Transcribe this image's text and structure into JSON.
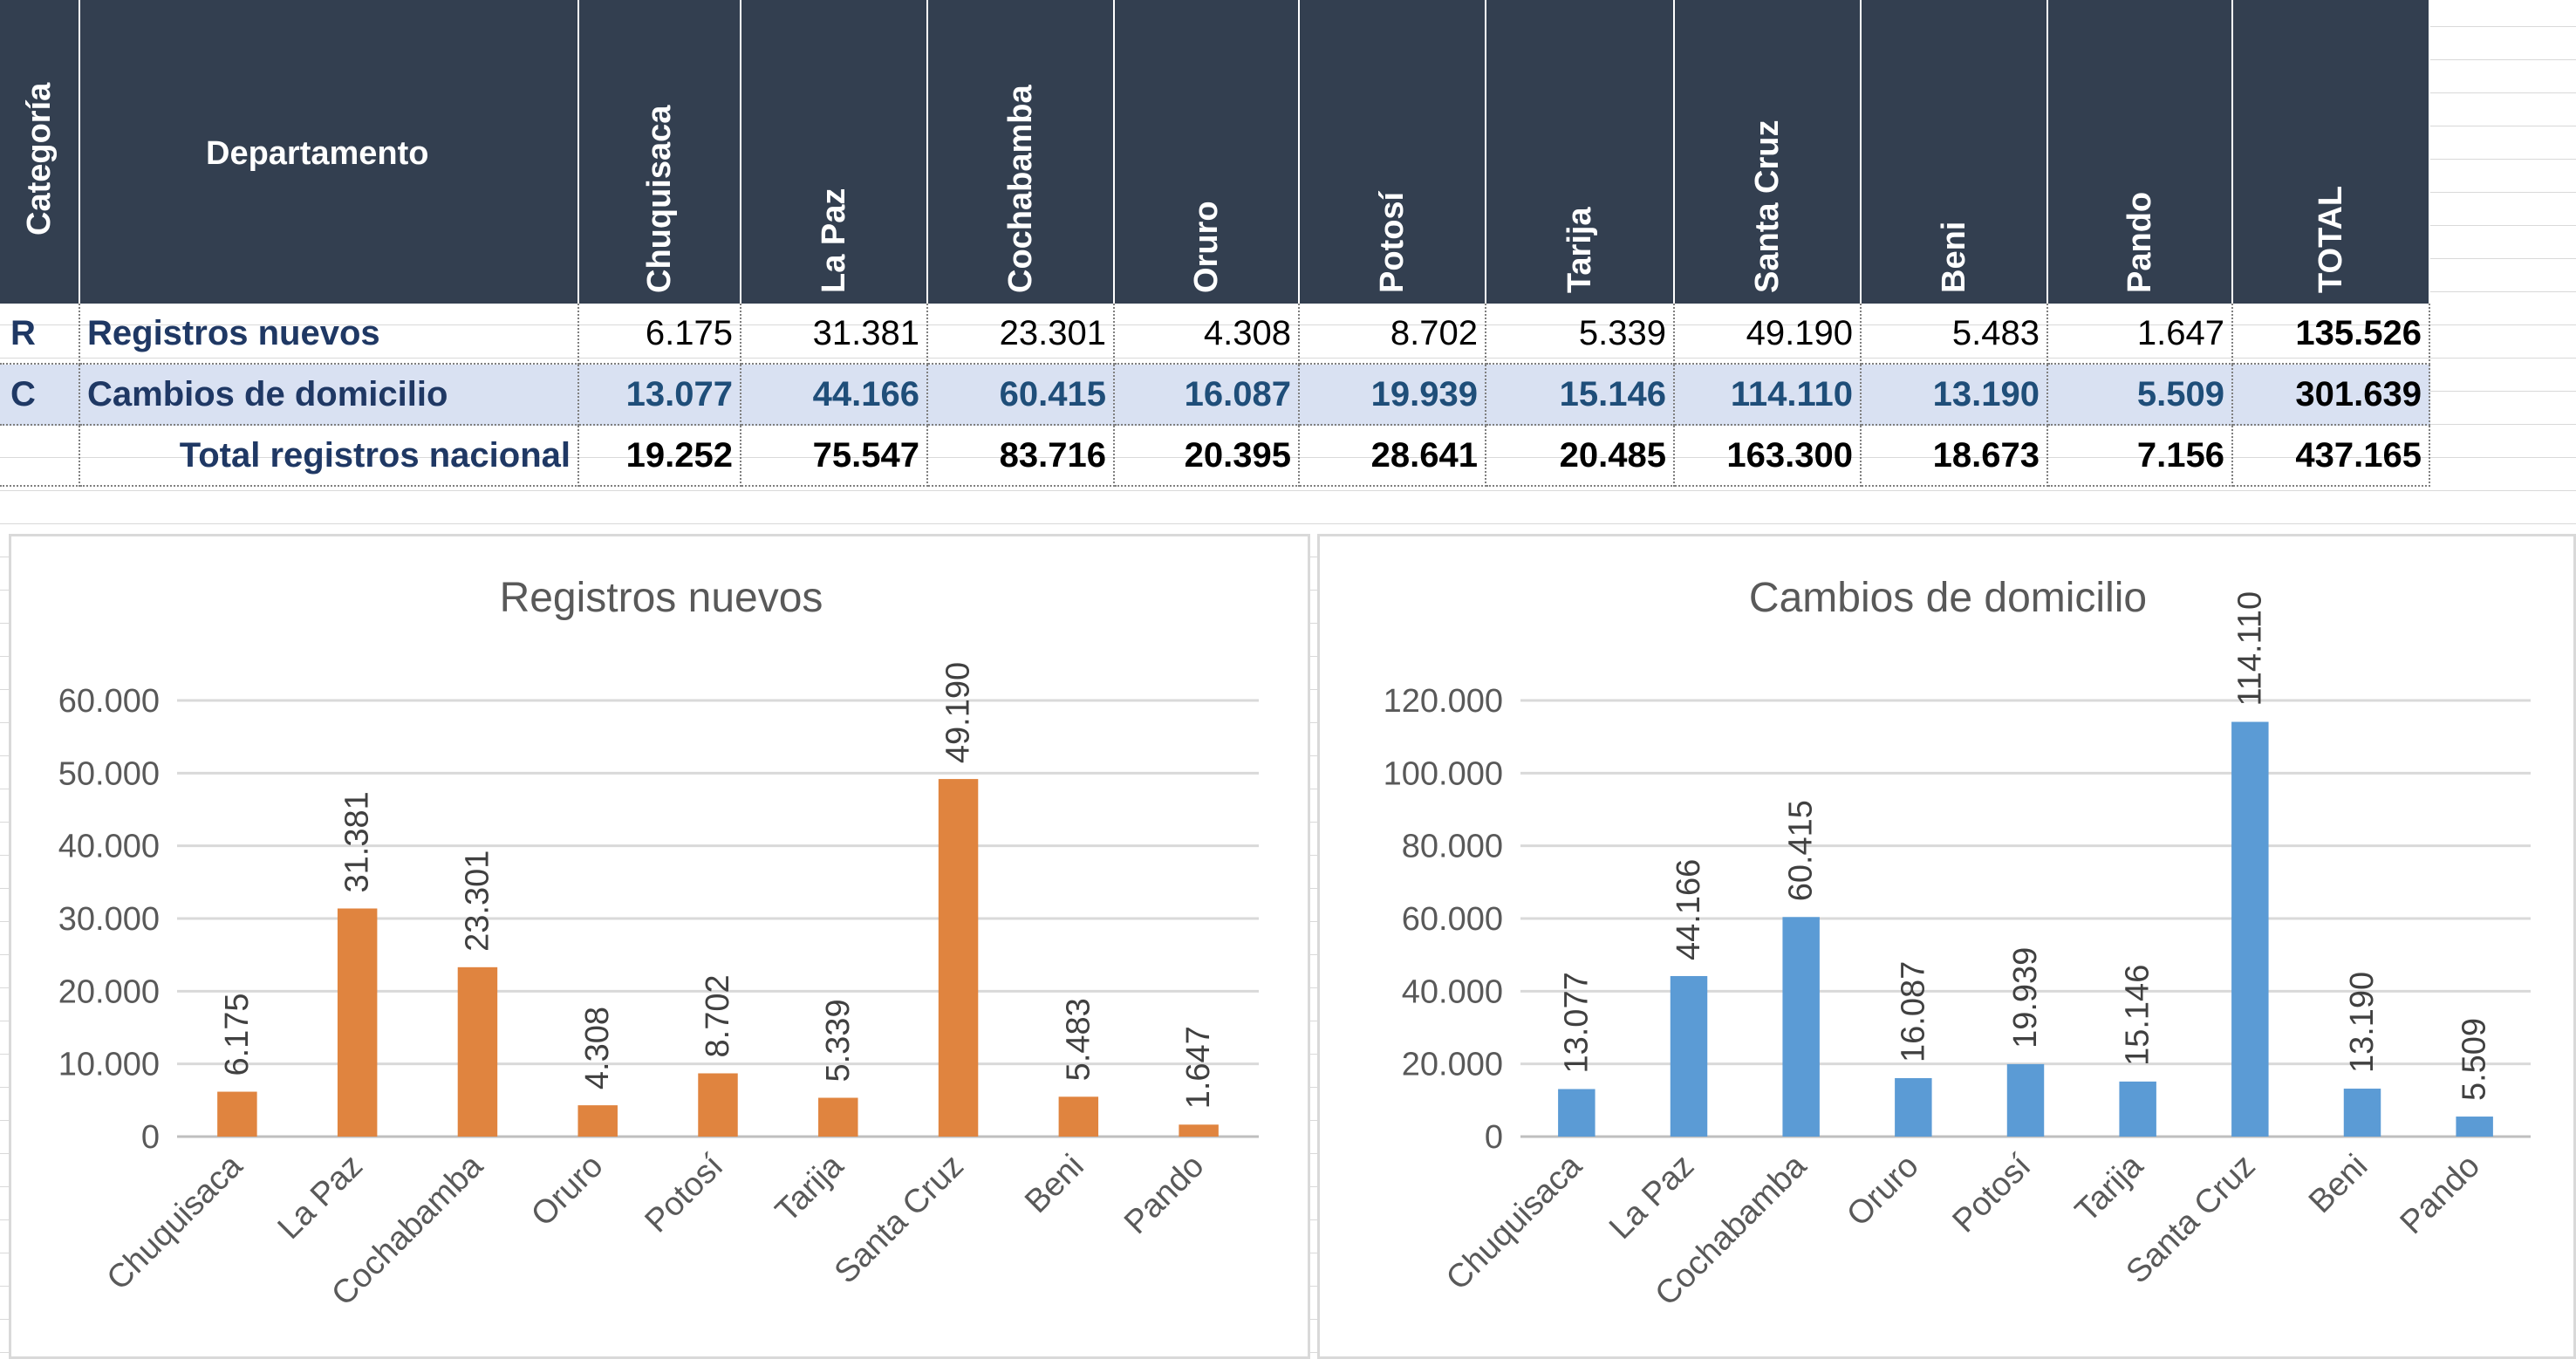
{
  "table": {
    "header": {
      "categoria": "Categoría",
      "departamento": "Departamento",
      "columns": [
        "Chuquisaca",
        "La Paz",
        "Cochabamba",
        "Oruro",
        "Potosí",
        "Tarija",
        "Santa Cruz",
        "Beni",
        "Pando",
        "TOTAL"
      ]
    },
    "rows": [
      {
        "cat": "R",
        "label": "Registros nuevos",
        "values": [
          "6.175",
          "31.381",
          "23.301",
          "4.308",
          "8.702",
          "5.339",
          "49.190",
          "5.483",
          "1.647",
          "135.526"
        ]
      },
      {
        "cat": "C",
        "label": "Cambios de domicilio",
        "values": [
          "13.077",
          "44.166",
          "60.415",
          "16.087",
          "19.939",
          "15.146",
          "114.110",
          "13.190",
          "5.509",
          "301.639"
        ]
      },
      {
        "cat": "",
        "label": "Total registros nacional",
        "values": [
          "19.252",
          "75.547",
          "83.716",
          "20.395",
          "28.641",
          "20.485",
          "163.300",
          "18.673",
          "7.156",
          "437.165"
        ]
      }
    ]
  },
  "colors": {
    "header_bg": "#333f50",
    "row_highlight": "#d9e1f2",
    "label_navy": "#1f3864",
    "bar_orange": "#e0843f",
    "bar_blue": "#5b9bd5"
  },
  "chart_data": [
    {
      "type": "bar",
      "title": "Registros nuevos",
      "categories": [
        "Chuquisaca",
        "La Paz",
        "Cochabamba",
        "Oruro",
        "Potosí",
        "Tarija",
        "Santa Cruz",
        "Beni",
        "Pando"
      ],
      "values": [
        6175,
        31381,
        23301,
        4308,
        8702,
        5339,
        49190,
        5483,
        1647
      ],
      "data_labels": [
        "6.175",
        "31.381",
        "23.301",
        "4.308",
        "8.702",
        "5.339",
        "49.190",
        "5.483",
        "1.647"
      ],
      "yticks": [
        "0",
        "10.000",
        "20.000",
        "30.000",
        "40.000",
        "50.000",
        "60.000"
      ],
      "ylim": [
        0,
        60000
      ],
      "xlabel": "",
      "ylabel": "",
      "grid": true,
      "color": "#e0843f"
    },
    {
      "type": "bar",
      "title": "Cambios de domicilio",
      "categories": [
        "Chuquisaca",
        "La Paz",
        "Cochabamba",
        "Oruro",
        "Potosí",
        "Tarija",
        "Santa Cruz",
        "Beni",
        "Pando"
      ],
      "values": [
        13077,
        44166,
        60415,
        16087,
        19939,
        15146,
        114110,
        13190,
        5509
      ],
      "data_labels": [
        "13.077",
        "44.166",
        "60.415",
        "16.087",
        "19.939",
        "15.146",
        "114.110",
        "13.190",
        "5.509"
      ],
      "yticks": [
        "0",
        "20.000",
        "40.000",
        "60.000",
        "80.000",
        "100.000",
        "120.000"
      ],
      "ylim": [
        0,
        120000
      ],
      "xlabel": "",
      "ylabel": "",
      "grid": true,
      "color": "#5b9bd5"
    }
  ]
}
